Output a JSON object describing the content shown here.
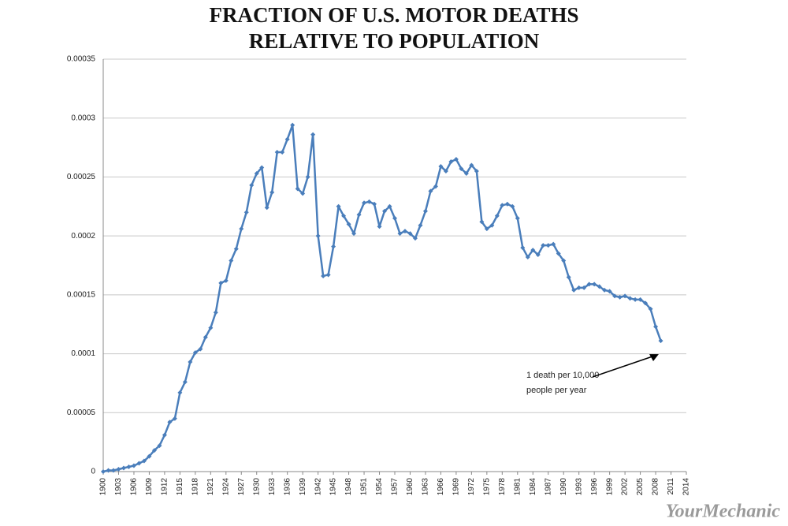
{
  "chart_data": {
    "type": "line",
    "title": [
      "FRACTION OF U.S. MOTOR DEATHS",
      "RELATIVE TO POPULATION"
    ],
    "annotation": [
      "1 death per 10,000",
      "people per year"
    ],
    "watermark": "YourMechanic",
    "color": "#4a7ebb",
    "grid": true,
    "xlim": [
      1900,
      2014
    ],
    "xticks": [
      1900,
      1903,
      1906,
      1909,
      1912,
      1915,
      1918,
      1921,
      1924,
      1927,
      1930,
      1933,
      1936,
      1939,
      1942,
      1945,
      1948,
      1951,
      1954,
      1957,
      1960,
      1963,
      1966,
      1969,
      1972,
      1975,
      1978,
      1981,
      1984,
      1987,
      1990,
      1993,
      1996,
      1999,
      2002,
      2005,
      2008,
      2011,
      2014
    ],
    "ylim": [
      0,
      0.00035
    ],
    "yticks": [
      0,
      5e-05,
      0.0001,
      0.00015,
      0.0002,
      0.00025,
      0.0003,
      0.00035
    ],
    "x": [
      1900,
      1901,
      1902,
      1903,
      1904,
      1905,
      1906,
      1907,
      1908,
      1909,
      1910,
      1911,
      1912,
      1913,
      1914,
      1915,
      1916,
      1917,
      1918,
      1919,
      1920,
      1921,
      1922,
      1923,
      1924,
      1925,
      1926,
      1927,
      1928,
      1929,
      1930,
      1931,
      1932,
      1933,
      1934,
      1935,
      1936,
      1937,
      1938,
      1939,
      1940,
      1941,
      1942,
      1943,
      1944,
      1945,
      1946,
      1947,
      1948,
      1949,
      1950,
      1951,
      1952,
      1953,
      1954,
      1955,
      1956,
      1957,
      1958,
      1959,
      1960,
      1961,
      1962,
      1963,
      1964,
      1965,
      1966,
      1967,
      1968,
      1969,
      1970,
      1971,
      1972,
      1973,
      1974,
      1975,
      1976,
      1977,
      1978,
      1979,
      1980,
      1981,
      1982,
      1983,
      1984,
      1985,
      1986,
      1987,
      1988,
      1989,
      1990,
      1991,
      1992,
      1993,
      1994,
      1995,
      1996,
      1997,
      1998,
      1999,
      2000,
      2001,
      2002,
      2003,
      2004,
      2005,
      2006,
      2007,
      2008,
      2009
    ],
    "values": [
      0,
      1e-06,
      1e-06,
      2e-06,
      3e-06,
      4e-06,
      5e-06,
      7e-06,
      9e-06,
      1.3e-05,
      1.8e-05,
      2.2e-05,
      3.1e-05,
      4.2e-05,
      4.5e-05,
      6.7e-05,
      7.6e-05,
      9.3e-05,
      0.000101,
      0.000104,
      0.000114,
      0.000122,
      0.000135,
      0.00016,
      0.000162,
      0.000179,
      0.000189,
      0.000206,
      0.00022,
      0.000243,
      0.000253,
      0.000258,
      0.000224,
      0.000237,
      0.000271,
      0.000271,
      0.000282,
      0.000294,
      0.00024,
      0.000236,
      0.00025,
      0.000286,
      0.0002,
      0.000166,
      0.000167,
      0.000191,
      0.000225,
      0.000217,
      0.00021,
      0.000202,
      0.000218,
      0.000228,
      0.000229,
      0.000227,
      0.000208,
      0.000221,
      0.000225,
      0.000215,
      0.000202,
      0.000204,
      0.000202,
      0.000198,
      0.000209,
      0.000221,
      0.000238,
      0.000242,
      0.000259,
      0.000255,
      0.000263,
      0.000265,
      0.000257,
      0.000253,
      0.00026,
      0.000255,
      0.000212,
      0.000206,
      0.000209,
      0.000217,
      0.000226,
      0.000227,
      0.000225,
      0.000215,
      0.00019,
      0.000182,
      0.000188,
      0.000184,
      0.000192,
      0.000192,
      0.000193,
      0.000185,
      0.000179,
      0.000165,
      0.000154,
      0.000156,
      0.000156,
      0.000159,
      0.000159,
      0.000157,
      0.000154,
      0.000153,
      0.000149,
      0.000148,
      0.000149,
      0.000147,
      0.000146,
      0.000146,
      0.000143,
      0.000138,
      0.000123,
      0.000111
    ]
  }
}
